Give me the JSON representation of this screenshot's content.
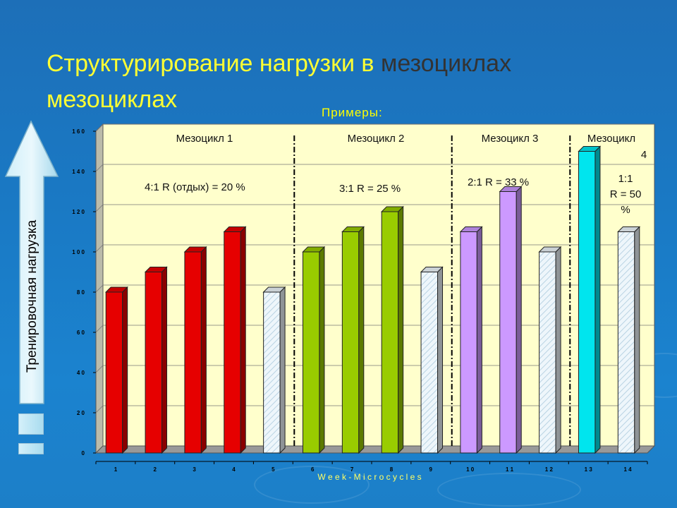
{
  "slide": {
    "title_part1": "Структурирование нагрузки в",
    "title_part2": "мезоциклах",
    "title_line2": "мезоциклах",
    "subtitle": "Примеры:",
    "y_arrow_label": "Тренировочная нагрузка"
  },
  "colors": {
    "mesocycle1": "#e60000",
    "mesocycle2": "#99cc00",
    "mesocycle3": "#cc99ff",
    "mesocycle4": "#00e5ee",
    "rest": "#eef6fb",
    "plot_background": "#ffffcc",
    "title": "#ffff33"
  },
  "chart_data": {
    "type": "bar",
    "style": "3d",
    "categories": [
      "1",
      "2",
      "3",
      "4",
      "5",
      "6",
      "7",
      "8",
      "9",
      "10",
      "11",
      "12",
      "13",
      "14"
    ],
    "values": [
      80,
      90,
      100,
      110,
      80,
      100,
      110,
      120,
      90,
      110,
      130,
      100,
      150,
      110
    ],
    "bar_groups": [
      "m1",
      "m1",
      "m1",
      "m1",
      "rest",
      "m2",
      "m2",
      "m2",
      "rest",
      "m3",
      "m3",
      "rest",
      "m4",
      "rest"
    ],
    "xlabel": "W e e k  -  M i c r o c y c l e s",
    "ylim": [
      0,
      160
    ],
    "yticks": [
      "0",
      "2 0",
      "4 0",
      "6 0",
      "8 0",
      "1 0 0",
      "1 2 0",
      "1 4 0",
      "1 6 0"
    ],
    "xticks": [
      "1",
      "2",
      "3",
      "4",
      "5",
      "6",
      "7",
      "8",
      "9",
      "1 0",
      "1 1",
      "1 2",
      "1 3",
      "1 4"
    ],
    "grid": true,
    "annotations": [
      {
        "label": "Мезоцикл 1",
        "ratio": "4:1  R (отдых) = 20 %"
      },
      {
        "label": "Мезоцикл 2",
        "ratio": "3:1  R = 25 %"
      },
      {
        "label": "Мезоцикл 3",
        "ratio": "2:1  R = 33 %"
      },
      {
        "label_line1": "Мезоцикл",
        "label_line2": "4",
        "ratio_line1": "1:1",
        "ratio_line2": "R = 50",
        "ratio_line3": "%"
      }
    ],
    "dividers_after_week": [
      5,
      9,
      12
    ]
  }
}
